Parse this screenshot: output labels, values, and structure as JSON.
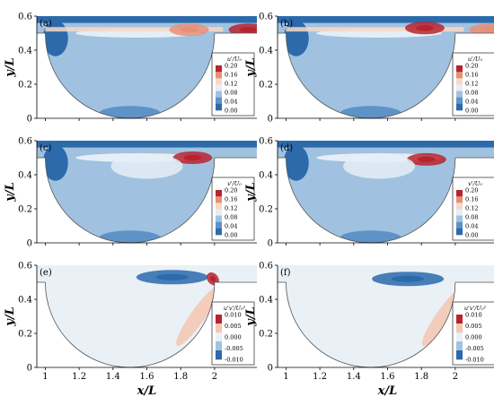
{
  "chart_data": {
    "type": "heatmap",
    "panels": [
      {
        "tag": "(a)",
        "legend_title": "u'/U₀",
        "legend_ticks": [
          "0.20",
          "0.16",
          "0.12",
          "0.08",
          "0.04",
          "0.00"
        ],
        "colormap": "sequential",
        "max": 0.2,
        "features": [
          {
            "kind": "shear-layer",
            "x": [
              1.0,
              2.05
            ],
            "y": 0.52,
            "value": 0.14
          },
          {
            "kind": "peak",
            "x": 2.2,
            "y": 0.52,
            "value": 0.2
          },
          {
            "kind": "peak",
            "x": 1.85,
            "y": 0.52,
            "value": 0.16
          }
        ]
      },
      {
        "tag": "(b)",
        "legend_title": "u'/U₀",
        "legend_ticks": [
          "0.20",
          "0.16",
          "0.12",
          "0.08",
          "0.04",
          "0.00"
        ],
        "colormap": "sequential",
        "max": 0.2,
        "features": [
          {
            "kind": "shear-layer",
            "x": [
              1.0,
              2.05
            ],
            "y": 0.52,
            "value": 0.14
          },
          {
            "kind": "peak",
            "x": 1.82,
            "y": 0.53,
            "value": 0.2
          },
          {
            "kind": "peak",
            "x": 2.2,
            "y": 0.52,
            "value": 0.16
          }
        ]
      },
      {
        "tag": "(c)",
        "legend_title": "v'/U₀",
        "legend_ticks": [
          "0.20",
          "0.16",
          "0.12",
          "0.08",
          "0.04",
          "0.00"
        ],
        "colormap": "sequential",
        "max": 0.2,
        "features": [
          {
            "kind": "peak",
            "x": 1.87,
            "y": 0.5,
            "value": 0.22
          },
          {
            "kind": "region",
            "x": 1.6,
            "y": 0.45,
            "value": 0.1
          }
        ]
      },
      {
        "tag": "(d)",
        "legend_title": "v'/U₀",
        "legend_ticks": [
          "0.20",
          "0.16",
          "0.12",
          "0.08",
          "0.04",
          "0.00"
        ],
        "colormap": "sequential",
        "max": 0.2,
        "features": [
          {
            "kind": "peak",
            "x": 1.83,
            "y": 0.49,
            "value": 0.2
          },
          {
            "kind": "region",
            "x": 1.55,
            "y": 0.45,
            "value": 0.1
          }
        ]
      },
      {
        "tag": "(e)",
        "legend_title": "u'v'/U₀²",
        "legend_ticks": [
          "0.010",
          "0.005",
          "0.000",
          "-0.005",
          "-0.010"
        ],
        "colormap": "diverging",
        "max": 0.01,
        "features": [
          {
            "kind": "negative-band",
            "x": 1.75,
            "y": 0.53,
            "value": -0.01
          },
          {
            "kind": "positive-spot",
            "x": 1.99,
            "y": 0.52,
            "value": 0.01
          },
          {
            "kind": "positive-band",
            "x": 1.9,
            "y": 0.3,
            "value": 0.003
          }
        ]
      },
      {
        "tag": "(f)",
        "legend_title": "u'v'/U₀²",
        "legend_ticks": [
          "0.010",
          "0.005",
          "0.000",
          "-0.005",
          "-0.010"
        ],
        "colormap": "diverging",
        "max": 0.01,
        "features": [
          {
            "kind": "negative-band",
            "x": 1.72,
            "y": 0.52,
            "value": -0.01
          },
          {
            "kind": "positive-band",
            "x": 1.93,
            "y": 0.3,
            "value": 0.005
          }
        ]
      }
    ],
    "x_axis": {
      "label": "x/L",
      "ticks": [
        "1",
        "1.2",
        "1.4",
        "1.6",
        "1.8",
        "2"
      ],
      "range": [
        0.95,
        2.25
      ]
    },
    "y_axis": {
      "label": "y/L",
      "ticks": [
        "0",
        "0.2",
        "0.4",
        "0.6"
      ],
      "range": [
        0,
        0.6
      ]
    },
    "cavity": {
      "center_x": 1.5,
      "radius": 0.5,
      "top_y": 0.5
    },
    "colors": {
      "sequential": [
        "#2c6aab",
        "#5e93c7",
        "#a0c2e0",
        "#e5eef6",
        "#f8d8c7",
        "#e78f77",
        "#b8232e"
      ],
      "diverging": [
        "#2c6aab",
        "#9fc3e0",
        "#e9f0f6",
        "#f6c6b1",
        "#b8232e"
      ]
    }
  }
}
